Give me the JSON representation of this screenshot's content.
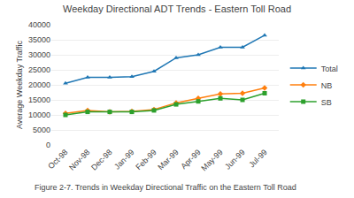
{
  "chart_data": {
    "type": "line",
    "title": "Weekday Directional ADT Trends - Eastern Toll Road",
    "caption": "Figure 2-7. Trends in Weekday Directional Traffic on the Eastern Toll Road",
    "y_label": "Average Weekday Traffic",
    "categories": [
      "Oct-98",
      "Nov-98",
      "Dec-98",
      "Jan-99",
      "Feb-99",
      "Mar-99",
      "Apr-99",
      "May-99",
      "Jun-99",
      "Jul-99"
    ],
    "series": [
      {
        "name": "Total",
        "marker": "triangle",
        "values": [
          20500,
          22500,
          22500,
          22700,
          24500,
          29000,
          30000,
          32500,
          32500,
          36500
        ]
      },
      {
        "name": "NB",
        "marker": "diamond",
        "values": [
          10500,
          11500,
          11000,
          11200,
          11800,
          14000,
          15500,
          17000,
          17200,
          19000
        ]
      },
      {
        "name": "SB",
        "marker": "square",
        "values": [
          10000,
          11000,
          11000,
          11000,
          11500,
          13500,
          14500,
          15500,
          15000,
          17200
        ]
      }
    ],
    "ylim": [
      0,
      40000
    ],
    "yticks": [
      0,
      5000,
      10000,
      15000,
      20000,
      25000,
      30000,
      35000,
      40000
    ],
    "grid": true,
    "legend": "right"
  }
}
